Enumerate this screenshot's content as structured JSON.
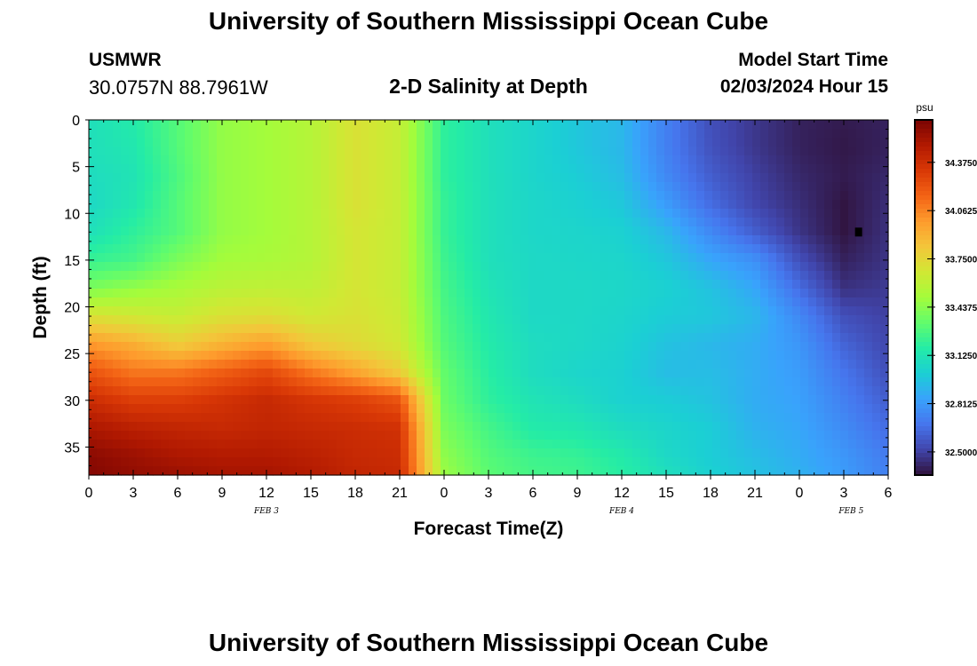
{
  "header": {
    "title": "University of Southern Mississippi Ocean Cube",
    "station_name": "USMWR",
    "station_coords": "30.0757N  88.7961W",
    "plot_title": "2-D Salinity at Depth",
    "model_start_label": "Model Start Time",
    "model_start_value": "02/03/2024 Hour 15",
    "footer_title": "University of Southern Mississippi Ocean Cube"
  },
  "chart_data": {
    "type": "heatmap",
    "title": "2-D Salinity at Depth",
    "xlabel": "Forecast Time(Z)",
    "ylabel": "Depth (ft)",
    "x_unit": "hours from Feb 3 00Z",
    "xlim": [
      0,
      54
    ],
    "ylim": [
      0,
      38
    ],
    "y_inverted": true,
    "x_tick_labels": [
      "0",
      "3",
      "6",
      "9",
      "12",
      "15",
      "18",
      "21",
      "0",
      "3",
      "6",
      "9",
      "12",
      "15",
      "18",
      "21",
      "0",
      "3",
      "6"
    ],
    "y_tick_labels": [
      "0",
      "5",
      "10",
      "15",
      "20",
      "25",
      "30",
      "35"
    ],
    "date_labels": [
      "FEB 3",
      "FEB 4",
      "FEB 5"
    ],
    "colorbar": {
      "unit": "psu",
      "min": 32.35,
      "max": 34.65,
      "tick_labels": [
        "34.3750",
        "34.0625",
        "33.7500",
        "33.4375",
        "33.1250",
        "32.8125",
        "32.5000"
      ],
      "colors": [
        "#30123b",
        "#4145ab",
        "#4675ed",
        "#39a2fc",
        "#1bcfd4",
        "#24eca6",
        "#61fc6c",
        "#a4fc3b",
        "#d1e834",
        "#f3c63a",
        "#fe9b2d",
        "#f36315",
        "#d93806",
        "#b11901",
        "#7a0403"
      ]
    },
    "depths_ft": [
      0,
      3,
      6,
      9,
      12,
      15,
      18,
      21,
      24,
      27,
      30,
      33,
      36,
      38
    ],
    "times_h": [
      0,
      3,
      6,
      9,
      12,
      15,
      18,
      21,
      24,
      27,
      30,
      33,
      36,
      39,
      42,
      45,
      48,
      51,
      54
    ],
    "salinity_psu": [
      [
        33.1,
        33.16,
        33.3,
        33.46,
        33.5,
        33.56,
        33.7,
        33.62,
        33.2,
        33.1,
        33.04,
        32.98,
        32.92,
        32.72,
        32.55,
        32.47,
        32.4,
        32.38,
        32.4
      ],
      [
        33.1,
        33.14,
        33.3,
        33.46,
        33.5,
        33.56,
        33.7,
        33.62,
        33.2,
        33.1,
        33.04,
        32.98,
        32.92,
        32.72,
        32.56,
        32.47,
        32.4,
        32.37,
        32.4
      ],
      [
        33.08,
        33.12,
        33.28,
        33.46,
        33.5,
        33.56,
        33.7,
        33.62,
        33.2,
        33.1,
        33.04,
        33.0,
        32.94,
        32.75,
        32.6,
        32.5,
        32.42,
        32.38,
        32.42
      ],
      [
        33.06,
        33.14,
        33.3,
        33.46,
        33.5,
        33.56,
        33.7,
        33.62,
        33.22,
        33.1,
        33.05,
        33.02,
        32.98,
        32.82,
        32.65,
        32.52,
        32.44,
        32.36,
        32.44
      ],
      [
        33.1,
        33.2,
        33.3,
        33.46,
        33.5,
        33.56,
        33.68,
        33.62,
        33.22,
        33.1,
        33.05,
        33.04,
        33.02,
        32.92,
        32.75,
        32.6,
        32.46,
        32.36,
        32.45
      ],
      [
        33.22,
        33.26,
        33.4,
        33.5,
        33.52,
        33.56,
        33.68,
        33.62,
        33.24,
        33.1,
        33.06,
        33.05,
        33.04,
        32.98,
        32.86,
        32.78,
        32.55,
        32.4,
        32.46
      ],
      [
        33.4,
        33.46,
        33.52,
        33.58,
        33.6,
        33.6,
        33.68,
        33.62,
        33.26,
        33.12,
        33.06,
        33.06,
        33.05,
        33.02,
        32.96,
        32.86,
        32.65,
        32.45,
        32.48
      ],
      [
        33.7,
        33.66,
        33.62,
        33.7,
        33.72,
        33.66,
        33.7,
        33.64,
        33.28,
        33.14,
        33.06,
        33.06,
        33.04,
        33.0,
        32.98,
        32.92,
        32.75,
        32.55,
        32.5
      ],
      [
        34.0,
        33.92,
        33.8,
        33.9,
        33.98,
        33.82,
        33.74,
        33.66,
        33.3,
        33.16,
        33.08,
        33.06,
        33.03,
        32.96,
        32.92,
        32.88,
        32.8,
        32.62,
        32.52
      ],
      [
        34.22,
        34.1,
        34.1,
        34.18,
        34.26,
        34.1,
        33.96,
        33.8,
        33.34,
        33.18,
        33.08,
        33.04,
        33.02,
        32.94,
        32.94,
        32.88,
        32.82,
        32.68,
        32.55
      ],
      [
        34.38,
        34.3,
        34.3,
        34.35,
        34.4,
        34.34,
        34.3,
        34.22,
        33.36,
        33.2,
        33.12,
        33.08,
        33.02,
        33.0,
        32.96,
        32.88,
        32.84,
        32.72,
        32.6
      ],
      [
        34.5,
        34.45,
        34.42,
        34.4,
        34.42,
        34.4,
        34.38,
        34.36,
        33.4,
        33.26,
        33.16,
        33.14,
        33.08,
        33.04,
        33.0,
        32.9,
        32.86,
        32.76,
        32.65
      ],
      [
        34.6,
        34.55,
        34.5,
        34.48,
        34.48,
        34.45,
        34.4,
        34.38,
        33.45,
        33.3,
        33.24,
        33.22,
        33.16,
        33.06,
        33.0,
        32.94,
        32.88,
        32.8,
        32.7
      ],
      [
        34.62,
        34.58,
        34.55,
        34.52,
        34.52,
        34.48,
        34.42,
        34.4,
        33.48,
        33.32,
        33.26,
        33.24,
        33.18,
        33.1,
        33.02,
        32.96,
        32.9,
        32.82,
        32.72
      ]
    ],
    "marker": {
      "time_h": 52,
      "depth_ft": 12
    }
  }
}
